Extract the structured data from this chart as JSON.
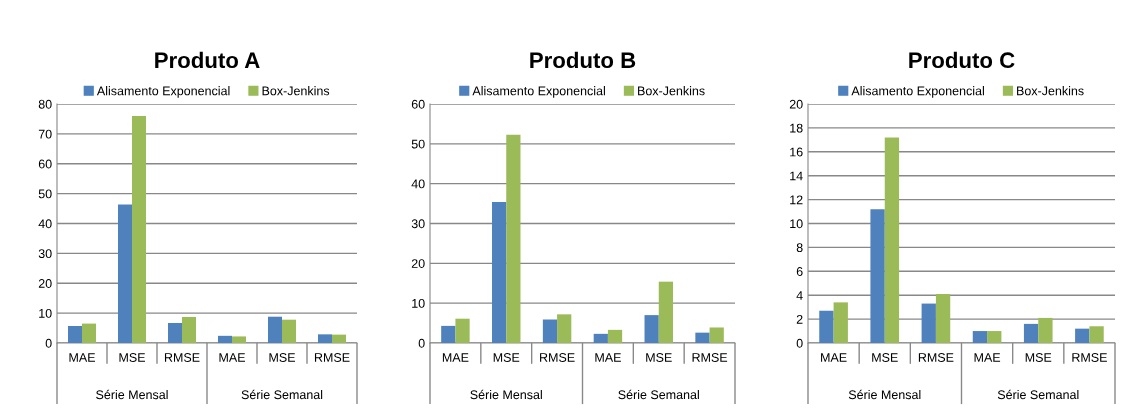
{
  "chart_data": [
    {
      "type": "bar",
      "title": "Produto A",
      "categories": [
        "MAE",
        "MSE",
        "RMSE",
        "MAE",
        "MSE",
        "RMSE"
      ],
      "annotations": [
        "Série Mensal",
        "Série Semanal"
      ],
      "series": [
        {
          "name": "Alisamento Exponencial",
          "color": "#4f81bd",
          "values": [
            5.7,
            46.4,
            6.7,
            2.4,
            8.8,
            2.9
          ]
        },
        {
          "name": "Box-Jenkins",
          "color": "#9bbb59",
          "values": [
            6.5,
            76,
            8.7,
            2.2,
            7.8,
            2.8
          ]
        }
      ],
      "ylim": [
        0,
        80
      ],
      "yticks": [
        0,
        10,
        20,
        30,
        40,
        50,
        60,
        70,
        80
      ],
      "grid": "y",
      "legend": "top"
    },
    {
      "type": "bar",
      "title": "Produto B",
      "categories": [
        "MAE",
        "MSE",
        "RMSE",
        "MAE",
        "MSE",
        "RMSE"
      ],
      "annotations": [
        "Série Mensal",
        "Série Semanal"
      ],
      "series": [
        {
          "name": "Alisamento Exponencial",
          "color": "#4f81bd",
          "values": [
            4.3,
            35.4,
            5.9,
            2.3,
            7.0,
            2.6
          ]
        },
        {
          "name": "Box-Jenkins",
          "color": "#9bbb59",
          "values": [
            6.1,
            52.3,
            7.2,
            3.3,
            15.4,
            3.9
          ]
        }
      ],
      "ylim": [
        0,
        60
      ],
      "yticks": [
        0,
        10,
        20,
        30,
        40,
        50,
        60
      ],
      "grid": "y",
      "legend": "top"
    },
    {
      "type": "bar",
      "title": "Produto C",
      "categories": [
        "MAE",
        "MSE",
        "RMSE",
        "MAE",
        "MSE",
        "RMSE"
      ],
      "annotations": [
        "Série Mensal",
        "Série Semanal"
      ],
      "series": [
        {
          "name": "Alisamento Exponencial",
          "color": "#4f81bd",
          "values": [
            2.7,
            11.2,
            3.3,
            1.0,
            1.6,
            1.2
          ]
        },
        {
          "name": "Box-Jenkins",
          "color": "#9bbb59",
          "values": [
            3.4,
            17.2,
            4.1,
            1.0,
            2.1,
            1.4
          ]
        }
      ],
      "ylim": [
        0,
        20
      ],
      "yticks": [
        0,
        2,
        4,
        6,
        8,
        10,
        12,
        14,
        16,
        18,
        20
      ],
      "grid": "y",
      "legend": "top"
    }
  ]
}
